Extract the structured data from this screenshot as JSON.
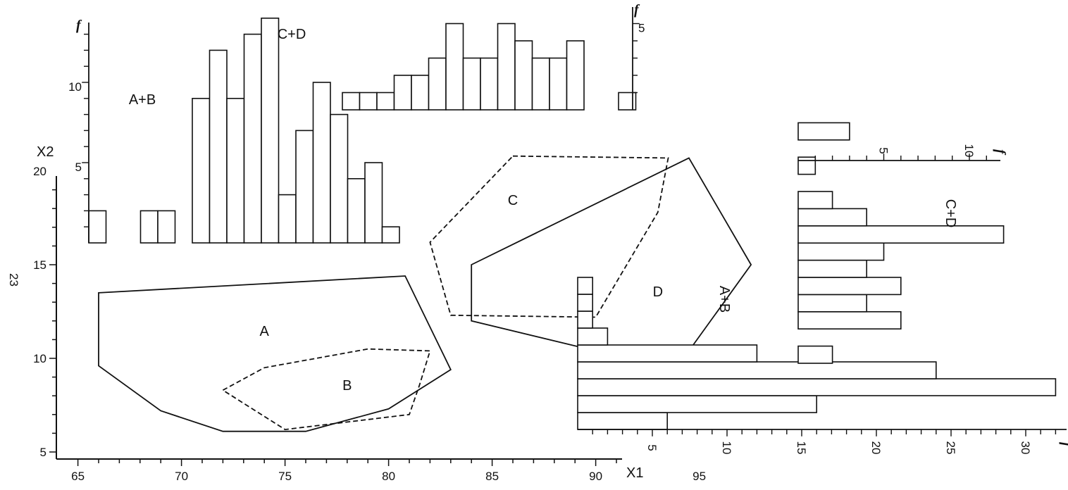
{
  "page_number": "23",
  "chart_data": [
    {
      "type": "scatter",
      "kind": "polygon-outlines",
      "xlabel": "X1",
      "ylabel": "X2",
      "x_ticks": [
        65,
        70,
        75,
        80,
        85,
        90,
        95
      ],
      "y_ticks": [
        5,
        10,
        15,
        20
      ],
      "xlim": [
        63,
        98
      ],
      "ylim": [
        4,
        21
      ],
      "series": [
        {
          "name": "A",
          "style": "solid",
          "points": [
            [
              66,
              13.5
            ],
            [
              80.8,
              14.4
            ],
            [
              83,
              9.4
            ],
            [
              80,
              7.3
            ],
            [
              76,
              6.1
            ],
            [
              72,
              6.1
            ],
            [
              69,
              7.2
            ],
            [
              66,
              9.6
            ]
          ]
        },
        {
          "name": "B",
          "style": "dashed",
          "points": [
            [
              72,
              8.3
            ],
            [
              74,
              9.5
            ],
            [
              79,
              10.5
            ],
            [
              82,
              10.4
            ],
            [
              81.5,
              8.6
            ],
            [
              81,
              7.0
            ],
            [
              75,
              6.2
            ]
          ]
        },
        {
          "name": "C",
          "style": "dashed",
          "points": [
            [
              86,
              20.8
            ],
            [
              93.5,
              20.7
            ],
            [
              93,
              17.8
            ],
            [
              90,
              12.2
            ],
            [
              83,
              12.3
            ],
            [
              82,
              16.2
            ]
          ]
        },
        {
          "name": "D",
          "style": "solid",
          "points": [
            [
              84,
              15.0
            ],
            [
              94.5,
              20.7
            ],
            [
              97.5,
              15.0
            ],
            [
              94.5,
              10.4
            ],
            [
              90,
              10.4
            ],
            [
              84,
              12.0
            ]
          ]
        }
      ],
      "labels": [
        {
          "text": "A",
          "x": 74,
          "y": 11.2
        },
        {
          "text": "B",
          "x": 78,
          "y": 8.3
        },
        {
          "text": "C",
          "x": 86,
          "y": 18.2
        },
        {
          "text": "D",
          "x": 93,
          "y": 13.3
        }
      ]
    },
    {
      "type": "bar",
      "orientation": "vertical",
      "title": "A+B",
      "ylabel": "f",
      "y_ticks": [
        5,
        10
      ],
      "x_start": 65,
      "bin_width": 1,
      "values": [
        2,
        0,
        0,
        2,
        2,
        0,
        9,
        12,
        9,
        13,
        14,
        3,
        7,
        10,
        8,
        4,
        5,
        1
      ]
    },
    {
      "type": "bar",
      "orientation": "vertical",
      "title": "C+D",
      "ylabel": "f",
      "y_ticks": [
        5
      ],
      "x_start": 82,
      "bin_width": 1,
      "values": [
        1,
        1,
        1,
        2,
        2,
        3,
        5,
        3,
        3,
        5,
        4,
        3,
        3,
        4,
        0,
        0,
        1
      ]
    },
    {
      "type": "bar",
      "orientation": "horizontal",
      "title": "A+B",
      "xlabel": "f",
      "x_ticks": [
        5,
        10,
        15,
        20,
        25,
        30
      ],
      "y_start": 5,
      "bin_width": 1,
      "values": [
        6,
        16,
        32,
        24,
        12,
        2,
        1,
        1,
        1
      ]
    },
    {
      "type": "bar",
      "orientation": "horizontal",
      "title": "C+D",
      "xlabel": "f",
      "x_ticks": [
        5,
        10
      ],
      "y_start": 10,
      "bin_width": 1,
      "values": [
        2,
        0,
        6,
        4,
        6,
        4,
        5,
        12,
        4,
        2,
        0,
        1,
        0,
        3
      ]
    }
  ]
}
